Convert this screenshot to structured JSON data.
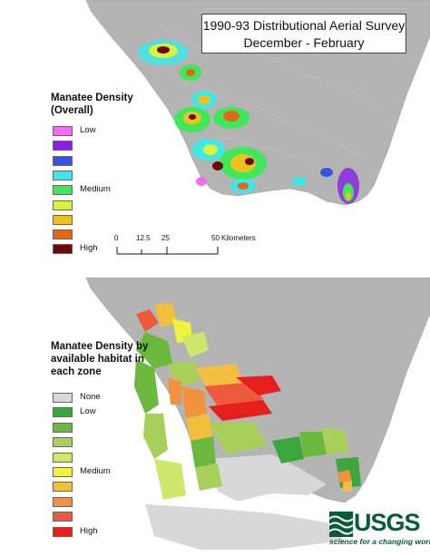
{
  "top_map": {
    "title_line1": "1990-93 Distributional Aerial Survey",
    "title_line2": "December - February",
    "legend_title": "Manatee Density (Overall)",
    "legend": [
      {
        "label": "Low",
        "color": "#f26cf2"
      },
      {
        "label": "",
        "color": "#8a1ee6"
      },
      {
        "label": "",
        "color": "#3a4ee8"
      },
      {
        "label": "",
        "color": "#3ee8e8"
      },
      {
        "label": "Medium",
        "color": "#3ee85a"
      },
      {
        "label": "",
        "color": "#d8f23e"
      },
      {
        "label": "",
        "color": "#f2c01e"
      },
      {
        "label": "",
        "color": "#e06a1a"
      },
      {
        "label": "High",
        "color": "#6a0a0a"
      }
    ],
    "scale": {
      "ticks": [
        "0",
        "12.5",
        "25",
        "50"
      ],
      "unit": "Kilometers"
    }
  },
  "bottom_map": {
    "legend_title": "Manatee Density by available habitat in each zone",
    "legend": [
      {
        "label": "None",
        "color": "#d8d8d8"
      },
      {
        "label": "Low",
        "color": "#3ea63e"
      },
      {
        "label": "",
        "color": "#6ab83e"
      },
      {
        "label": "",
        "color": "#a8d05a"
      },
      {
        "label": "",
        "color": "#cde86a"
      },
      {
        "label": "Medium",
        "color": "#f2f23e"
      },
      {
        "label": "",
        "color": "#f2c03e"
      },
      {
        "label": "",
        "color": "#f2923e"
      },
      {
        "label": "",
        "color": "#ee5a3e"
      },
      {
        "label": "High",
        "color": "#e61e1e"
      }
    ]
  },
  "logo": {
    "wordmark": "USGS",
    "tagline": "science for a changing world",
    "color": "#0a5c38"
  },
  "colors": {
    "land": "#b4b4b4",
    "water": "#ffffff"
  }
}
